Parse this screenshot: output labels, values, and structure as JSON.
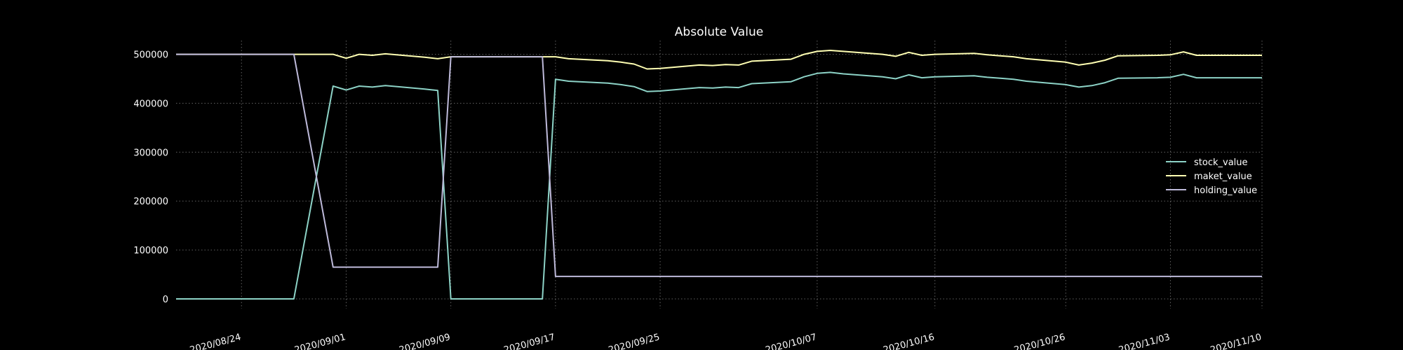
{
  "chart_data": {
    "type": "line",
    "title": "Absolute Value",
    "xlabel": "",
    "ylabel": "",
    "xlim": [
      "2020-08-19",
      "2020-11-10"
    ],
    "ylim": [
      -20000,
      528000
    ],
    "y_ticks": [
      0,
      100000,
      200000,
      300000,
      400000,
      500000
    ],
    "x_ticks": [
      "2020/08/24",
      "2020/09/01",
      "2020/09/09",
      "2020/09/17",
      "2020/09/25",
      "2020/10/07",
      "2020/10/16",
      "2020/10/26",
      "2020/11/03",
      "2020/11/10"
    ],
    "x_tick_dates": [
      "2020-08-24",
      "2020-09-01",
      "2020-09-09",
      "2020-09-17",
      "2020-09-25",
      "2020-10-07",
      "2020-10-16",
      "2020-10-26",
      "2020-11-03",
      "2020-11-10"
    ],
    "grid": true,
    "legend_position": "right",
    "x": [
      "2020-08-19",
      "2020-08-20",
      "2020-08-21",
      "2020-08-24",
      "2020-08-25",
      "2020-08-26",
      "2020-08-27",
      "2020-08-28",
      "2020-08-31",
      "2020-09-01",
      "2020-09-02",
      "2020-09-03",
      "2020-09-04",
      "2020-09-07",
      "2020-09-08",
      "2020-09-09",
      "2020-09-10",
      "2020-09-11",
      "2020-09-14",
      "2020-09-15",
      "2020-09-16",
      "2020-09-17",
      "2020-09-18",
      "2020-09-21",
      "2020-09-22",
      "2020-09-23",
      "2020-09-24",
      "2020-09-25",
      "2020-09-28",
      "2020-09-29",
      "2020-09-30",
      "2020-10-01",
      "2020-10-02",
      "2020-10-05",
      "2020-10-06",
      "2020-10-07",
      "2020-10-08",
      "2020-10-09",
      "2020-10-12",
      "2020-10-13",
      "2020-10-14",
      "2020-10-15",
      "2020-10-16",
      "2020-10-19",
      "2020-10-20",
      "2020-10-21",
      "2020-10-22",
      "2020-10-23",
      "2020-10-26",
      "2020-10-27",
      "2020-10-28",
      "2020-10-29",
      "2020-10-30",
      "2020-11-02",
      "2020-11-03",
      "2020-11-04",
      "2020-11-05",
      "2020-11-06",
      "2020-11-09",
      "2020-11-10"
    ],
    "series": [
      {
        "name": "stock_value",
        "color": "#8dd3c7",
        "values": [
          0,
          0,
          0,
          0,
          0,
          0,
          0,
          0,
          435000,
          427000,
          435000,
          433000,
          436000,
          429000,
          426000,
          0,
          0,
          0,
          0,
          0,
          0,
          449000,
          445000,
          441000,
          438000,
          434000,
          424000,
          425000,
          432000,
          431000,
          433000,
          432000,
          440000,
          444000,
          454000,
          461000,
          463000,
          460000,
          454000,
          450000,
          458000,
          452000,
          454000,
          456000,
          453000,
          451000,
          449000,
          445000,
          438000,
          433000,
          436000,
          442000,
          451000,
          452000,
          453000,
          459000,
          452000,
          452000,
          452000,
          452000
        ]
      },
      {
        "name": "maket_value",
        "color": "#ffffb3",
        "values": [
          500000,
          500000,
          500000,
          500000,
          500000,
          500000,
          500000,
          500000,
          500000,
          492000,
          500000,
          498000,
          501000,
          494000,
          491000,
          495000,
          495000,
          495000,
          495000,
          495000,
          495000,
          495000,
          491000,
          487000,
          484000,
          480000,
          470000,
          471000,
          478000,
          477000,
          479000,
          478000,
          486000,
          490000,
          500000,
          506000,
          508000,
          506000,
          500000,
          496000,
          504000,
          498000,
          500000,
          502000,
          499000,
          497000,
          495000,
          491000,
          484000,
          478000,
          482000,
          488000,
          497000,
          498000,
          499000,
          505000,
          498000,
          498000,
          498000,
          498000
        ]
      },
      {
        "name": "holding_value",
        "color": "#bebada",
        "values": [
          500000,
          500000,
          500000,
          500000,
          500000,
          500000,
          500000,
          500000,
          65000,
          65000,
          65000,
          65000,
          65000,
          65000,
          65000,
          495000,
          495000,
          495000,
          495000,
          495000,
          495000,
          46000,
          46000,
          46000,
          46000,
          46000,
          46000,
          46000,
          46000,
          46000,
          46000,
          46000,
          46000,
          46000,
          46000,
          46000,
          46000,
          46000,
          46000,
          46000,
          46000,
          46000,
          46000,
          46000,
          46000,
          46000,
          46000,
          46000,
          46000,
          46000,
          46000,
          46000,
          46000,
          46000,
          46000,
          46000,
          46000,
          46000,
          46000,
          46000
        ]
      }
    ]
  }
}
